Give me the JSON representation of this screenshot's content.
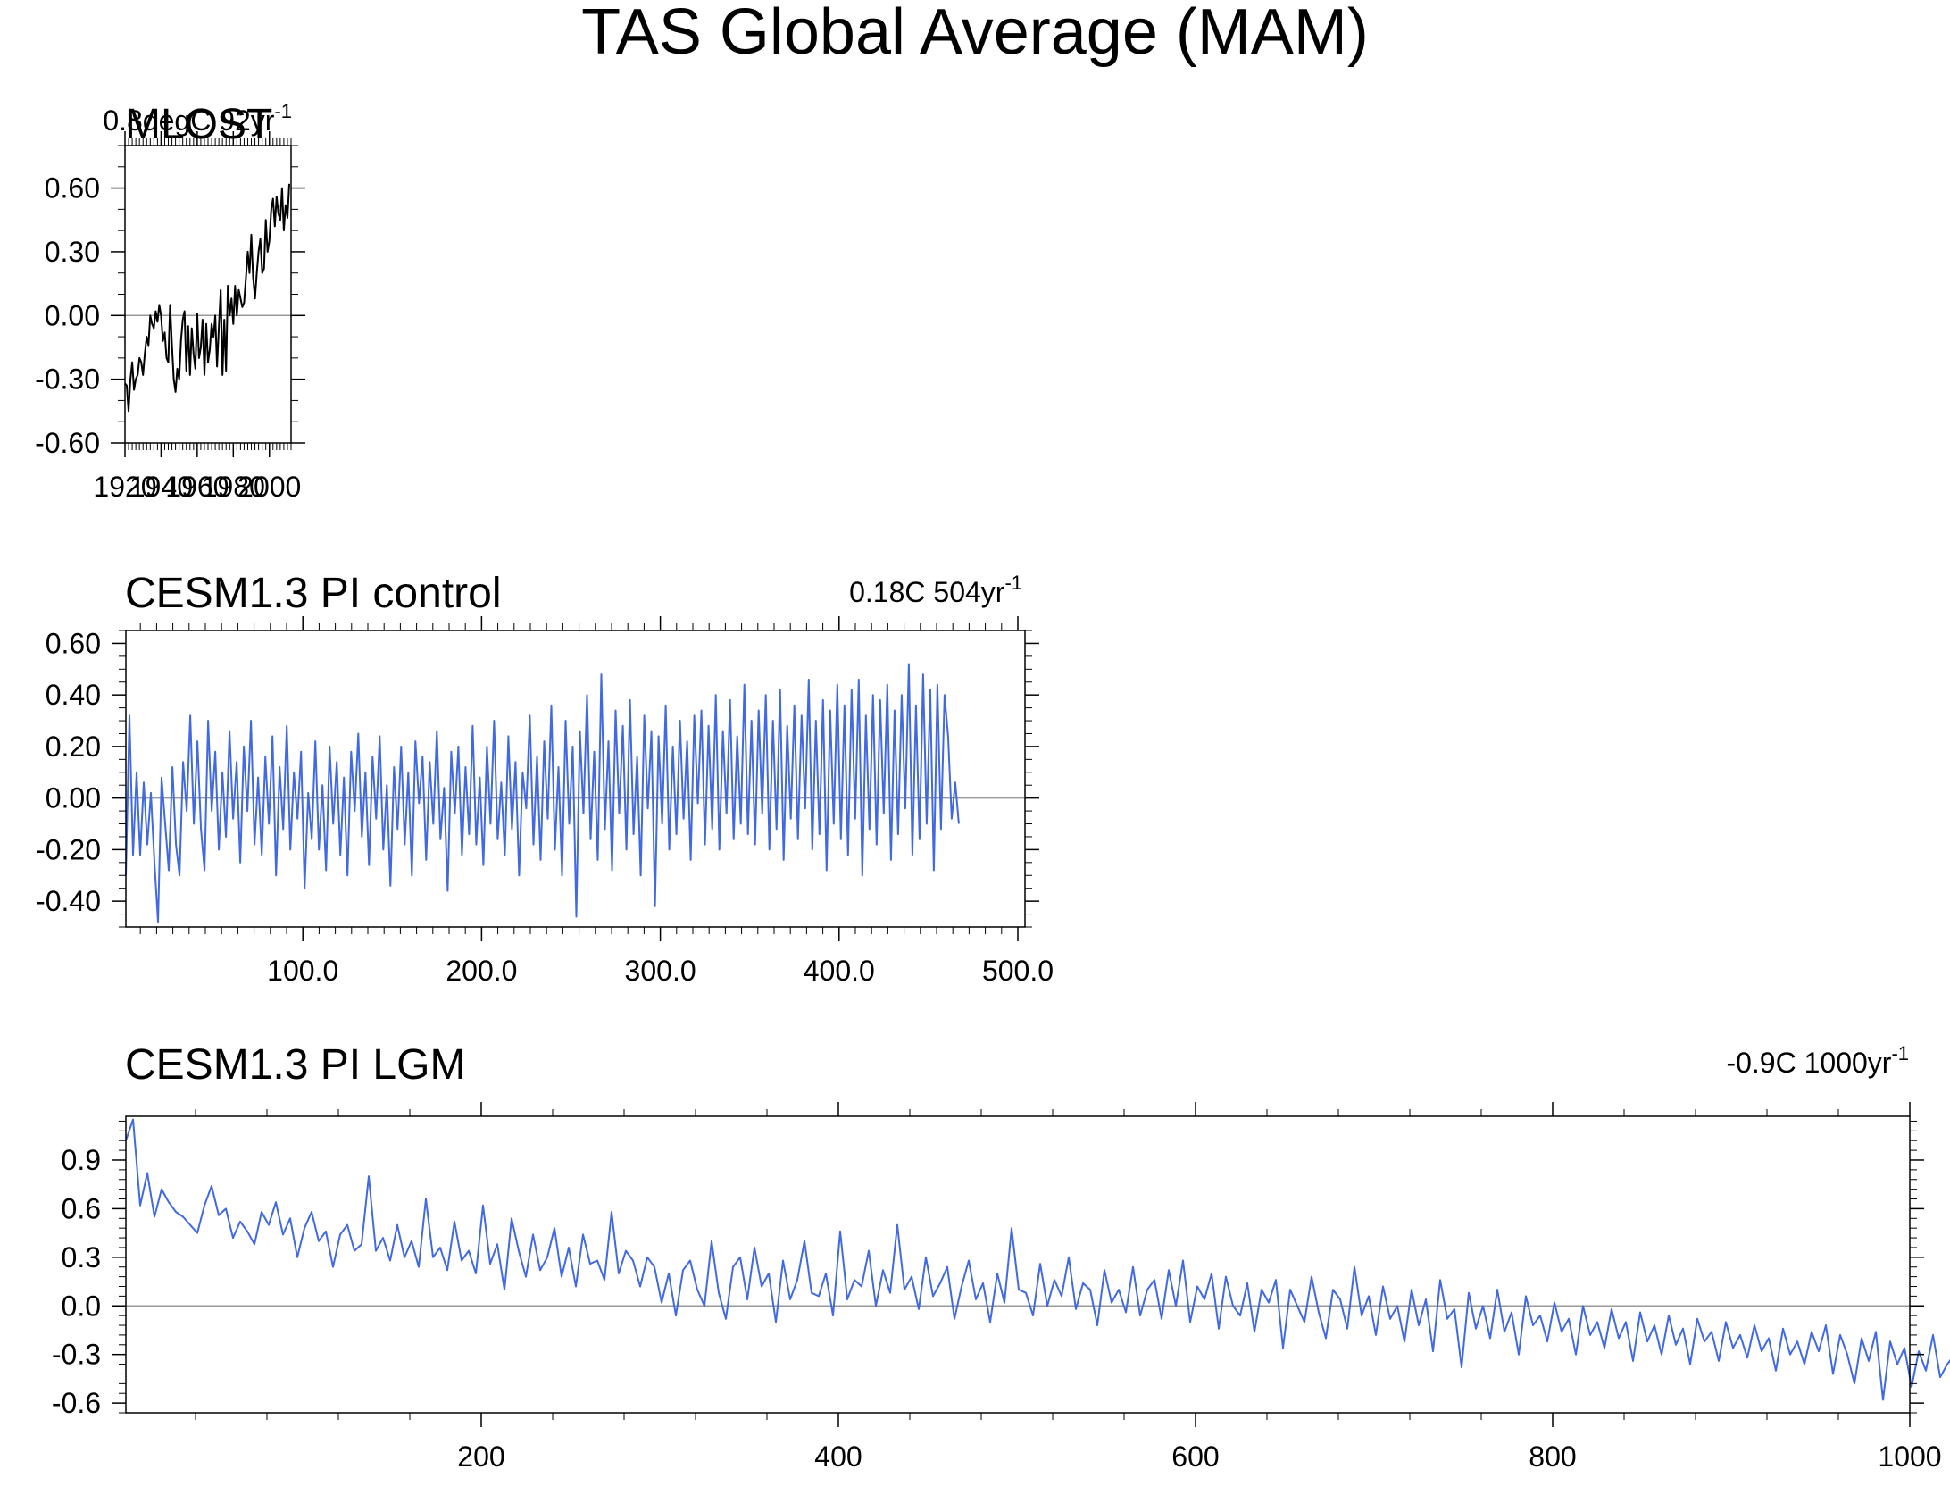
{
  "figure": {
    "title": "TAS Global Average (MAM)"
  },
  "colors": {
    "observed_line": "#000000",
    "model_line": "#4169E1",
    "zero_line": "#999999",
    "frame": "#000000"
  },
  "chart_data": [
    {
      "type": "line",
      "title": "MLOST",
      "trend_label": {
        "value": "0.8degC 92yr",
        "superscript": "-1"
      },
      "xlabel": "",
      "ylabel": "",
      "xlim": [
        1920,
        2012
      ],
      "ylim": [
        -0.6,
        0.8
      ],
      "xticks": [
        1920,
        1940,
        1960,
        1980,
        2000
      ],
      "xtick_labels": [
        "1920",
        "1940",
        "1960",
        "1980",
        "2000"
      ],
      "yticks": [
        -0.6,
        -0.3,
        0.0,
        0.3,
        0.6
      ],
      "ytick_labels": [
        "-0.60",
        "-0.30",
        "0.00",
        "0.30",
        "0.60"
      ],
      "zero_line": true,
      "series": [
        {
          "x": [
            1920,
            1921,
            1922,
            1923,
            1924,
            1925,
            1926,
            1927,
            1928,
            1929,
            1930,
            1931,
            1932,
            1933,
            1934,
            1935,
            1936,
            1937,
            1938,
            1939,
            1940,
            1941,
            1942,
            1943,
            1944,
            1945,
            1946,
            1947,
            1948,
            1949,
            1950,
            1951,
            1952,
            1953,
            1954,
            1955,
            1956,
            1957,
            1958,
            1959,
            1960,
            1961,
            1962,
            1963,
            1964,
            1965,
            1966,
            1967,
            1968,
            1969,
            1970,
            1971,
            1972,
            1973,
            1974,
            1975,
            1976,
            1977,
            1978,
            1979,
            1980,
            1981,
            1982,
            1983,
            1984,
            1985,
            1986,
            1987,
            1988,
            1989,
            1990,
            1991,
            1992,
            1993,
            1994,
            1995,
            1996,
            1997,
            1998,
            1999,
            2000,
            2001,
            2002,
            2003,
            2004,
            2005,
            2006,
            2007,
            2008,
            2009,
            2010,
            2011
          ],
          "y": [
            -0.32,
            -0.33,
            -0.45,
            -0.3,
            -0.22,
            -0.35,
            -0.3,
            -0.28,
            -0.2,
            -0.22,
            -0.28,
            -0.18,
            -0.1,
            -0.14,
            0.0,
            -0.04,
            -0.06,
            0.02,
            -0.03,
            0.05,
            0.0,
            -0.12,
            -0.08,
            -0.2,
            -0.22,
            0.05,
            -0.14,
            -0.3,
            -0.36,
            -0.25,
            -0.3,
            -0.12,
            -0.02,
            0.02,
            -0.26,
            -0.05,
            -0.28,
            -0.06,
            -0.18,
            -0.25,
            0.01,
            -0.2,
            -0.15,
            -0.02,
            -0.28,
            -0.04,
            -0.22,
            -0.16,
            -0.04,
            -0.1,
            0.0,
            -0.24,
            -0.06,
            0.12,
            -0.28,
            -0.02,
            -0.26,
            0.14,
            0.0,
            0.08,
            -0.04,
            0.14,
            0.0,
            0.12,
            0.08,
            0.04,
            0.06,
            0.18,
            0.3,
            0.2,
            0.38,
            0.18,
            0.08,
            0.2,
            0.3,
            0.36,
            0.2,
            0.22,
            0.45,
            0.3,
            0.35,
            0.5,
            0.55,
            0.42,
            0.56,
            0.48,
            0.45,
            0.6,
            0.4,
            0.52,
            0.46,
            0.62
          ]
        }
      ]
    },
    {
      "type": "line",
      "title": "CESM1.3 PI control",
      "trend_label": {
        "value": "0.18C 504yr",
        "superscript": "-1"
      },
      "xlabel": "",
      "ylabel": "",
      "xlim": [
        1,
        504
      ],
      "ylim": [
        -0.5,
        0.65
      ],
      "xticks": [
        100,
        200,
        300,
        400,
        500
      ],
      "xtick_labels": [
        "100.0",
        "200.0",
        "300.0",
        "400.0",
        "500.0"
      ],
      "yticks": [
        -0.4,
        -0.2,
        0.0,
        0.2,
        0.4,
        0.6
      ],
      "ytick_labels": [
        "-0.40",
        "-0.20",
        "0.00",
        "0.20",
        "0.40",
        "0.60"
      ],
      "zero_line": true,
      "series": [
        {
          "x_start": 1,
          "x_step": 2,
          "y": [
            -0.3,
            0.32,
            -0.22,
            0.1,
            -0.22,
            0.06,
            -0.18,
            0.02,
            -0.25,
            -0.48,
            0.08,
            -0.1,
            -0.28,
            0.12,
            -0.18,
            -0.3,
            0.14,
            -0.05,
            0.32,
            -0.1,
            0.22,
            -0.12,
            -0.28,
            0.3,
            -0.05,
            0.18,
            -0.2,
            0.1,
            -0.15,
            0.26,
            -0.08,
            0.14,
            -0.25,
            0.2,
            -0.05,
            0.3,
            -0.18,
            0.08,
            -0.22,
            0.16,
            -0.1,
            0.24,
            -0.3,
            0.12,
            -0.12,
            0.28,
            -0.2,
            0.1,
            -0.08,
            0.18,
            -0.35,
            0.02,
            -0.16,
            0.22,
            -0.2,
            0.05,
            -0.28,
            0.2,
            -0.1,
            0.14,
            -0.22,
            0.08,
            -0.3,
            0.18,
            -0.05,
            0.25,
            -0.15,
            0.1,
            -0.26,
            0.16,
            -0.08,
            0.24,
            -0.2,
            0.05,
            -0.34,
            0.12,
            -0.12,
            0.2,
            -0.18,
            0.1,
            -0.3,
            0.22,
            -0.02,
            0.16,
            -0.24,
            0.14,
            -0.1,
            0.26,
            -0.16,
            0.04,
            -0.36,
            0.18,
            -0.06,
            0.2,
            -0.22,
            0.12,
            -0.14,
            0.28,
            -0.18,
            0.08,
            -0.26,
            0.2,
            -0.1,
            0.3,
            -0.16,
            0.06,
            -0.22,
            0.24,
            -0.12,
            0.14,
            -0.3,
            0.1,
            -0.04,
            0.32,
            -0.18,
            0.16,
            -0.24,
            0.22,
            -0.08,
            0.36,
            -0.2,
            0.12,
            -0.3,
            0.3,
            -0.1,
            0.2,
            -0.46,
            0.26,
            -0.06,
            0.4,
            -0.16,
            0.18,
            -0.24,
            0.48,
            -0.12,
            0.22,
            -0.28,
            0.34,
            -0.06,
            0.28,
            -0.2,
            0.38,
            -0.14,
            0.16,
            -0.3,
            0.32,
            -0.04,
            0.26,
            -0.42,
            0.24,
            -0.1,
            0.36,
            -0.2,
            0.2,
            -0.14,
            0.3,
            -0.08,
            0.22,
            -0.24,
            0.32,
            -0.02,
            0.34,
            -0.18,
            0.28,
            -0.12,
            0.4,
            -0.2,
            0.26,
            -0.06,
            0.38,
            -0.16,
            0.24,
            -0.1,
            0.44,
            -0.14,
            0.3,
            -0.18,
            0.34,
            -0.06,
            0.4,
            -0.2,
            0.3,
            -0.12,
            0.42,
            -0.24,
            0.28,
            -0.08,
            0.36,
            -0.16,
            0.32,
            -0.04,
            0.46,
            -0.2,
            0.3,
            -0.14,
            0.38,
            -0.28,
            0.34,
            -0.1,
            0.44,
            -0.16,
            0.36,
            -0.22,
            0.42,
            -0.08,
            0.46,
            -0.3,
            0.32,
            -0.12,
            0.4,
            -0.18,
            0.38,
            -0.06,
            0.44,
            -0.24,
            0.34,
            -0.14,
            0.4,
            -0.04,
            0.52,
            -0.22,
            0.36,
            -0.16,
            0.48,
            -0.1,
            0.42,
            -0.28,
            0.44,
            -0.12,
            0.4,
            0.24,
            -0.08,
            0.06,
            -0.1
          ]
        }
      ]
    },
    {
      "type": "line",
      "title": "CESM1.3 PI LGM",
      "trend_label": {
        "value": "-0.9C 1000yr",
        "superscript": "-1"
      },
      "xlabel": "",
      "ylabel": "",
      "xlim": [
        1,
        1000
      ],
      "ylim": [
        -0.66,
        1.17
      ],
      "xticks": [
        200,
        400,
        600,
        800,
        1000
      ],
      "xtick_labels": [
        "200",
        "400",
        "600",
        "800",
        "1000"
      ],
      "yticks": [
        -0.6,
        -0.3,
        0.0,
        0.3,
        0.6,
        0.9
      ],
      "ytick_labels": [
        "-0.6",
        "-0.3",
        "0.0",
        "0.3",
        "0.6",
        "0.9"
      ],
      "zero_line": true,
      "series": [
        {
          "x_start": 1,
          "x_step": 4,
          "y": [
            1.02,
            1.15,
            0.62,
            0.82,
            0.55,
            0.72,
            0.64,
            0.58,
            0.55,
            0.5,
            0.45,
            0.62,
            0.74,
            0.56,
            0.6,
            0.42,
            0.52,
            0.46,
            0.38,
            0.58,
            0.5,
            0.64,
            0.44,
            0.54,
            0.3,
            0.48,
            0.58,
            0.4,
            0.46,
            0.24,
            0.44,
            0.5,
            0.34,
            0.38,
            0.8,
            0.34,
            0.42,
            0.28,
            0.5,
            0.3,
            0.4,
            0.24,
            0.66,
            0.3,
            0.36,
            0.22,
            0.52,
            0.28,
            0.34,
            0.2,
            0.62,
            0.26,
            0.38,
            0.1,
            0.54,
            0.34,
            0.18,
            0.44,
            0.22,
            0.3,
            0.48,
            0.18,
            0.36,
            0.12,
            0.44,
            0.26,
            0.28,
            0.16,
            0.58,
            0.2,
            0.34,
            0.28,
            0.12,
            0.3,
            0.24,
            0.02,
            0.2,
            -0.06,
            0.22,
            0.28,
            0.1,
            0.0,
            0.4,
            0.08,
            -0.08,
            0.24,
            0.3,
            0.04,
            0.36,
            0.12,
            0.2,
            -0.1,
            0.28,
            0.04,
            0.16,
            0.4,
            0.08,
            0.06,
            0.2,
            -0.06,
            0.46,
            0.04,
            0.16,
            0.12,
            0.34,
            0.0,
            0.22,
            0.08,
            0.5,
            0.1,
            0.18,
            -0.02,
            0.3,
            0.06,
            0.14,
            0.24,
            -0.08,
            0.12,
            0.28,
            0.04,
            0.14,
            -0.1,
            0.2,
            0.02,
            0.48,
            0.1,
            0.08,
            -0.06,
            0.26,
            0.0,
            0.16,
            0.06,
            0.3,
            -0.02,
            0.14,
            0.1,
            -0.12,
            0.22,
            0.02,
            0.1,
            -0.04,
            0.24,
            -0.06,
            0.1,
            0.16,
            -0.08,
            0.22,
            0.0,
            0.28,
            -0.1,
            0.12,
            0.04,
            0.2,
            -0.14,
            0.18,
            0.0,
            -0.06,
            0.14,
            -0.16,
            0.1,
            0.02,
            0.16,
            -0.26,
            0.1,
            0.0,
            -0.1,
            0.18,
            -0.04,
            -0.2,
            0.1,
            0.04,
            -0.14,
            0.24,
            -0.06,
            0.06,
            -0.18,
            0.12,
            -0.08,
            0.0,
            -0.22,
            0.1,
            -0.12,
            0.04,
            -0.28,
            0.16,
            -0.08,
            -0.02,
            -0.38,
            0.08,
            -0.14,
            0.0,
            -0.2,
            0.1,
            -0.16,
            -0.04,
            -0.3,
            0.06,
            -0.12,
            -0.06,
            -0.22,
            0.02,
            -0.16,
            -0.08,
            -0.3,
            0.0,
            -0.18,
            -0.1,
            -0.26,
            -0.02,
            -0.2,
            -0.1,
            -0.34,
            -0.04,
            -0.22,
            -0.12,
            -0.3,
            -0.06,
            -0.24,
            -0.14,
            -0.36,
            -0.08,
            -0.22,
            -0.16,
            -0.34,
            -0.1,
            -0.26,
            -0.18,
            -0.32,
            -0.12,
            -0.28,
            -0.2,
            -0.4,
            -0.14,
            -0.3,
            -0.22,
            -0.36,
            -0.16,
            -0.28,
            -0.12,
            -0.42,
            -0.18,
            -0.3,
            -0.48,
            -0.2,
            -0.34,
            -0.16,
            -0.58,
            -0.22,
            -0.36,
            -0.26,
            -0.5,
            -0.28,
            -0.4,
            -0.18,
            -0.44,
            -0.36,
            -0.3,
            -0.46
          ]
        }
      ]
    }
  ]
}
